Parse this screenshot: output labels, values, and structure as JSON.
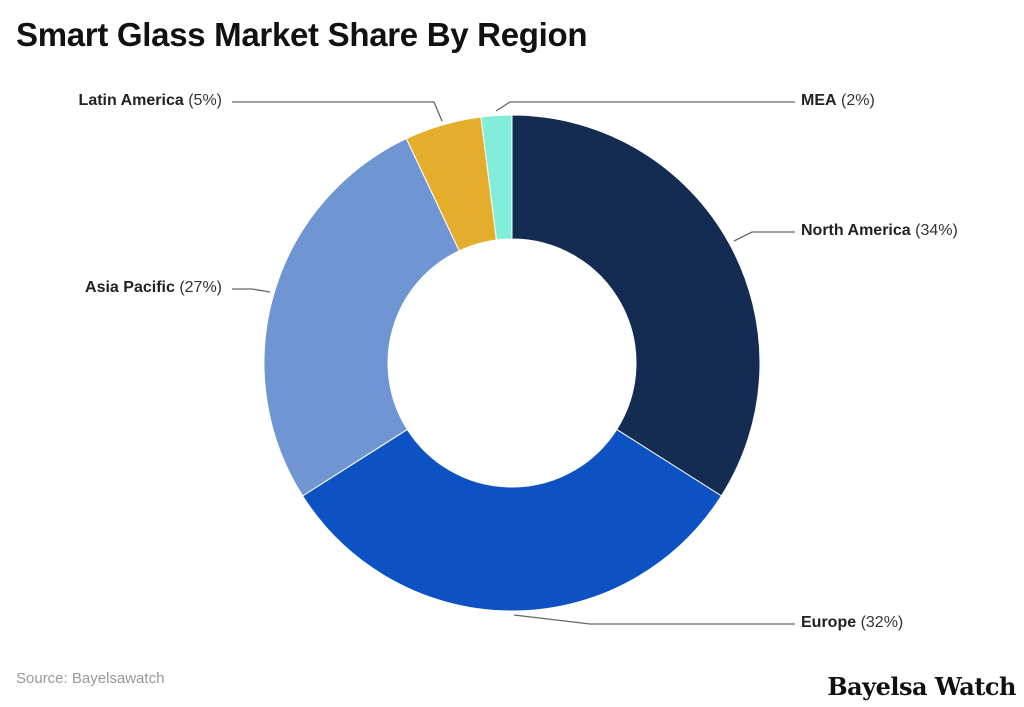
{
  "title": "Smart Glass Market Share By Region",
  "source": "Source: Bayelsawatch",
  "brand": "Bayelsa Watch",
  "labels": [
    {
      "name": "North America",
      "pct": "(34%)"
    },
    {
      "name": "Europe",
      "pct": "(32%)"
    },
    {
      "name": "Asia Pacific",
      "pct": "(27%)"
    },
    {
      "name": "Latin America",
      "pct": "(5%)"
    },
    {
      "name": "MEA",
      "pct": "(2%)"
    }
  ],
  "chart_data": {
    "type": "pie",
    "variant": "donut",
    "title": "Smart Glass Market Share By Region",
    "categories": [
      "North America",
      "Europe",
      "Asia Pacific",
      "Latin America",
      "MEA"
    ],
    "values": [
      34,
      32,
      27,
      5,
      2
    ],
    "unit": "%",
    "colors": [
      "#142c52",
      "#0d52c2",
      "#6f96d3",
      "#e4ae2c",
      "#82edd9"
    ],
    "start_angle_deg": 0,
    "direction": "clockwise",
    "legend": "callout labels",
    "source": "Source: Bayelsawatch"
  }
}
